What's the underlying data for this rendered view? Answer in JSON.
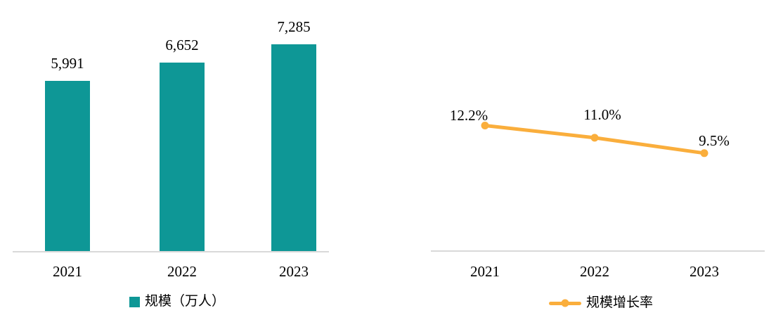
{
  "colors": {
    "teal": "#0E9796",
    "orange": "#FAAE3C",
    "axis_gray": "#D9D9D9",
    "text": "#000000"
  },
  "chart_data": [
    {
      "type": "bar",
      "title": "",
      "categories": [
        "2021",
        "2022",
        "2023"
      ],
      "values": [
        5991,
        6652,
        7285
      ],
      "data_labels": [
        "5,991",
        "6,652",
        "7,285"
      ],
      "legend": "规模（万人）",
      "legend_position": "bottom",
      "bar_color": "#0E9796",
      "axis_color": "#D9D9D9",
      "grid": false,
      "ylim": [
        0,
        7500
      ],
      "xlabel": "",
      "ylabel": ""
    },
    {
      "type": "line",
      "title": "",
      "categories": [
        "2021",
        "2022",
        "2023"
      ],
      "values": [
        12.2,
        11.0,
        9.5
      ],
      "data_labels": [
        "12.2%",
        "11.0%",
        "9.5%"
      ],
      "legend": "规模增长率",
      "legend_position": "bottom",
      "line_color": "#FAAE3C",
      "marker": "circle",
      "axis_color": "#D9D9D9",
      "grid": false,
      "ylim": [
        0,
        24
      ],
      "xlabel": "",
      "ylabel": ""
    }
  ]
}
